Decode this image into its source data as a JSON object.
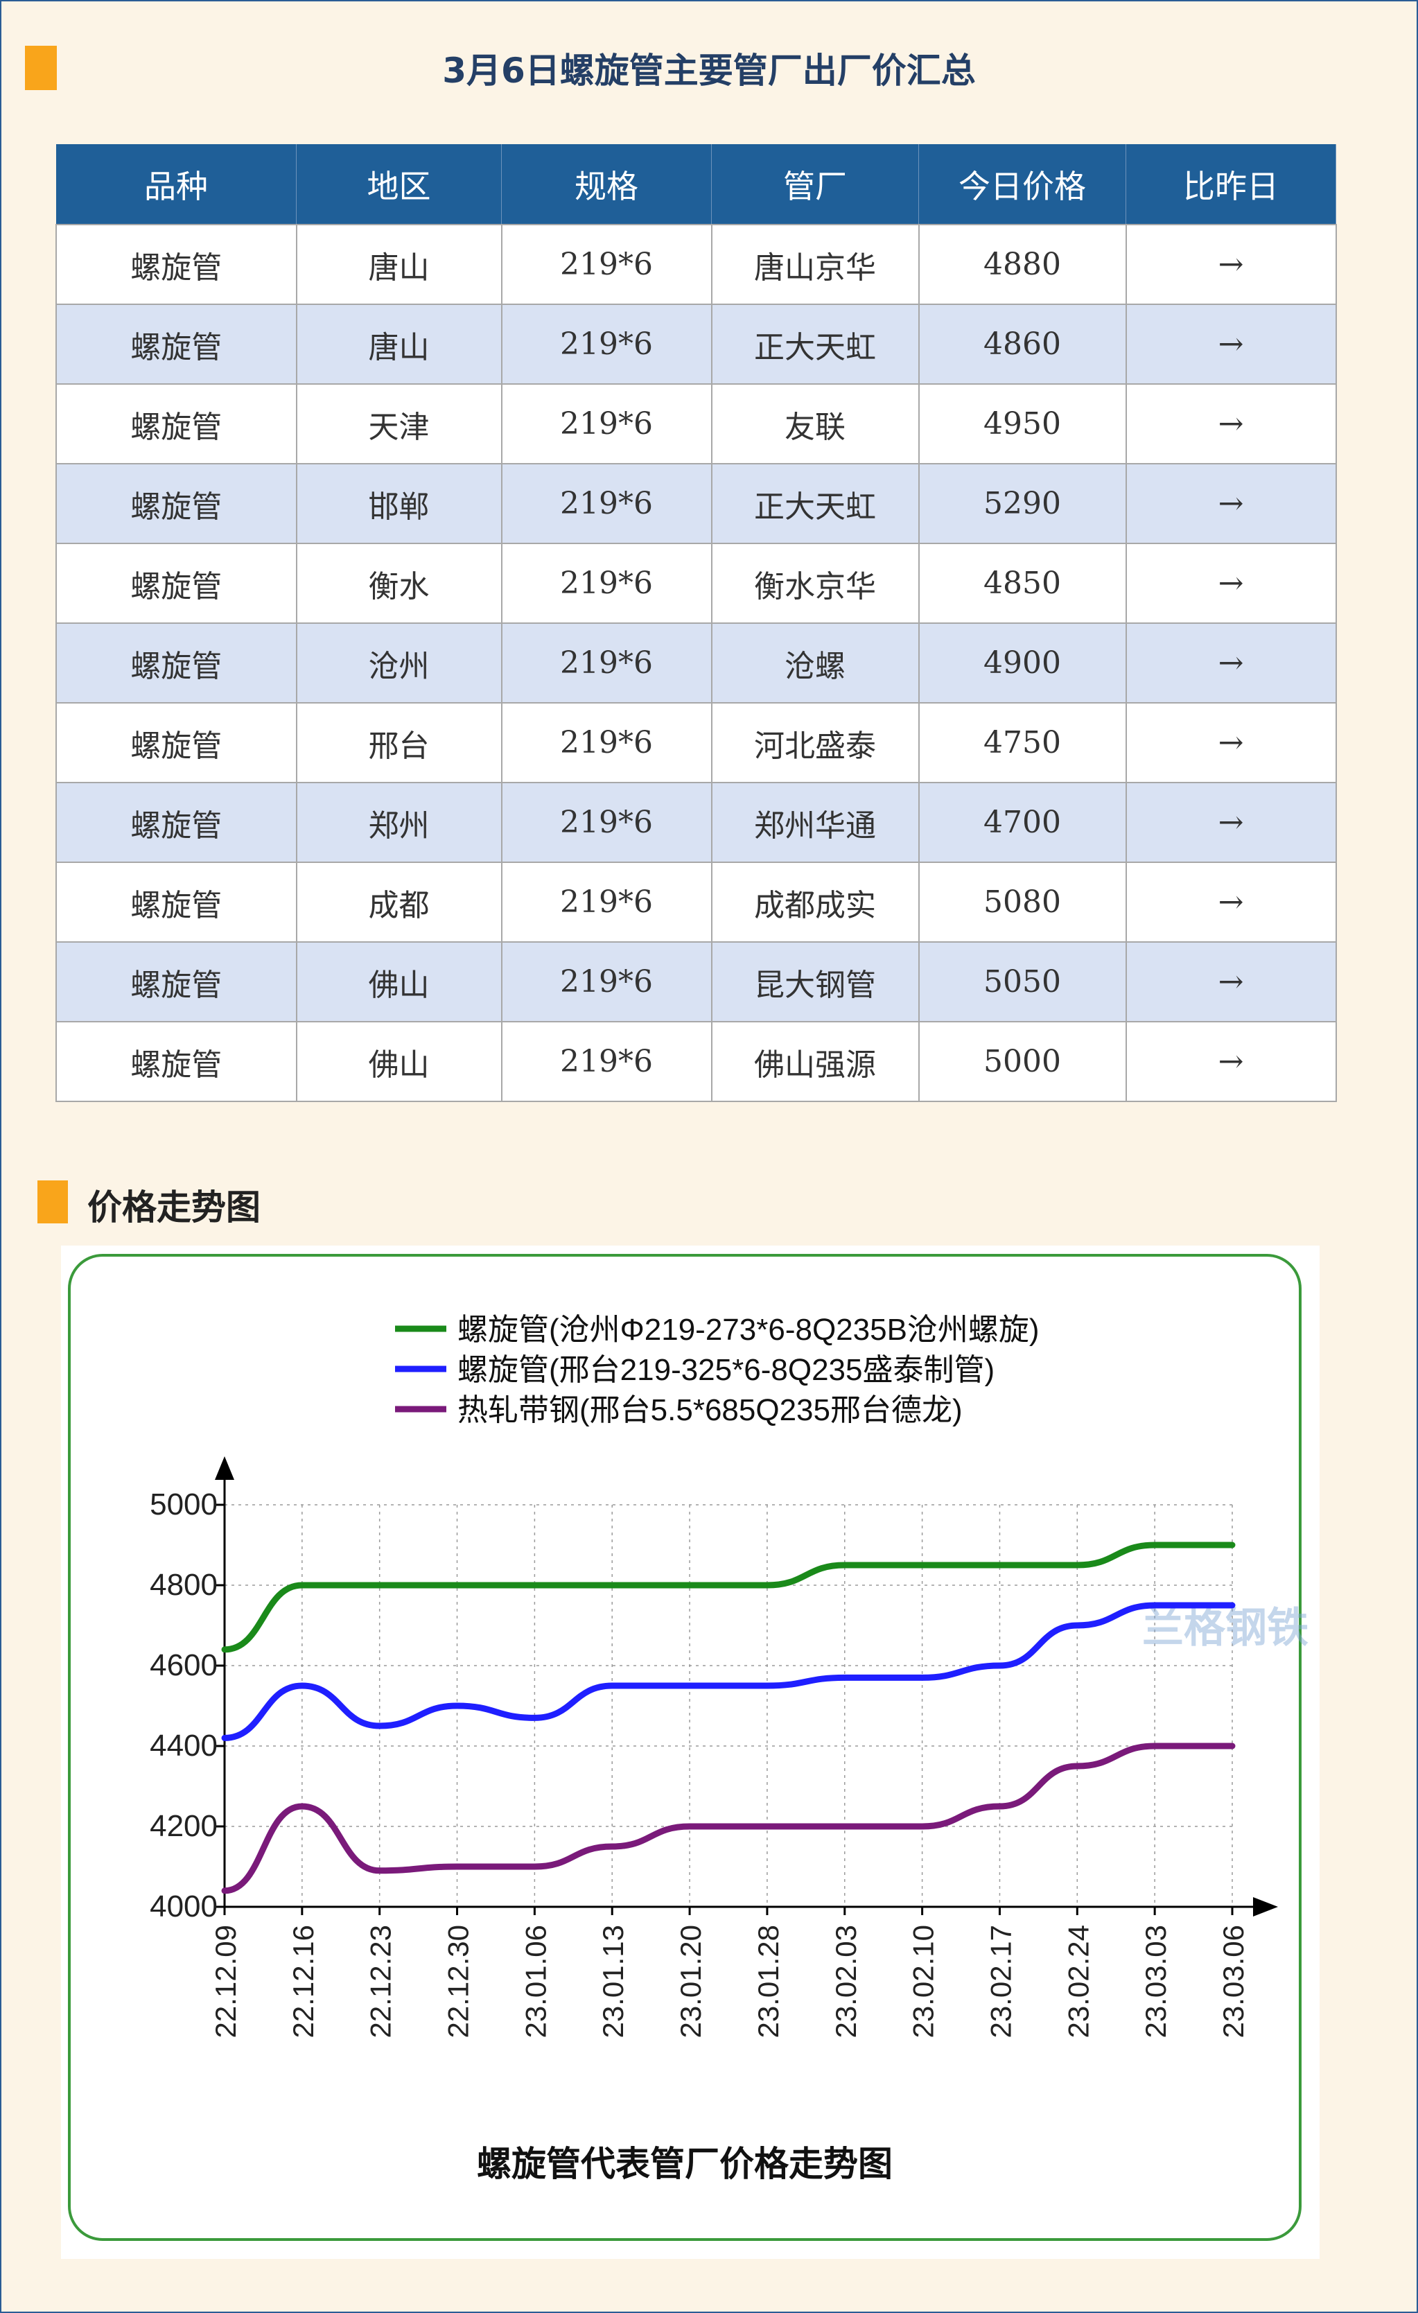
{
  "title": "3月6日螺旋管主要管厂出厂价汇总",
  "section2_title": "价格走势图",
  "colors": {
    "header_bg": "#1f5f98",
    "accent": "#f9a51b",
    "row_alt": "#d9e2f3"
  },
  "table": {
    "headers": [
      "品种",
      "地区",
      "规格",
      "管厂",
      "今日价格",
      "比昨日"
    ],
    "rows": [
      [
        "螺旋管",
        "唐山",
        "219*6",
        "唐山京华",
        "4880",
        "→"
      ],
      [
        "螺旋管",
        "唐山",
        "219*6",
        "正大天虹",
        "4860",
        "→"
      ],
      [
        "螺旋管",
        "天津",
        "219*6",
        "友联",
        "4950",
        "→"
      ],
      [
        "螺旋管",
        "邯郸",
        "219*6",
        "正大天虹",
        "5290",
        "→"
      ],
      [
        "螺旋管",
        "衡水",
        "219*6",
        "衡水京华",
        "4850",
        "→"
      ],
      [
        "螺旋管",
        "沧州",
        "219*6",
        "沧螺",
        "4900",
        "→"
      ],
      [
        "螺旋管",
        "邢台",
        "219*6",
        "河北盛泰",
        "4750",
        "→"
      ],
      [
        "螺旋管",
        "郑州",
        "219*6",
        "郑州华通",
        "4700",
        "→"
      ],
      [
        "螺旋管",
        "成都",
        "219*6",
        "成都成实",
        "5080",
        "→"
      ],
      [
        "螺旋管",
        "佛山",
        "219*6",
        "昆大钢管",
        "5050",
        "→"
      ],
      [
        "螺旋管",
        "佛山",
        "219*6",
        "佛山强源",
        "5000",
        "→"
      ]
    ]
  },
  "chart_data": {
    "type": "line",
    "title": "螺旋管代表管厂价格走势图",
    "watermark": "兰格钢铁",
    "x": [
      "22.12.09",
      "22.12.16",
      "22.12.23",
      "22.12.30",
      "23.01.06",
      "23.01.13",
      "23.01.20",
      "23.01.28",
      "23.02.03",
      "23.02.10",
      "23.02.17",
      "23.02.24",
      "23.03.03",
      "23.03.06"
    ],
    "ylim": [
      4000,
      5000
    ],
    "yticks": [
      "5000",
      "4800",
      "4600",
      "4400",
      "4200",
      "4000"
    ],
    "grid": true,
    "legend_position": "top",
    "series": [
      {
        "name": "螺旋管(沧州Φ219-273*6-8Q235B沧州螺旋)",
        "color": "#1a8a1a",
        "values": [
          4640,
          4800,
          4800,
          4800,
          4800,
          4800,
          4800,
          4800,
          4850,
          4850,
          4850,
          4850,
          4900,
          4900
        ]
      },
      {
        "name": "螺旋管(邢台219-325*6-8Q235盛泰制管)",
        "color": "#1f1fff",
        "values": [
          4420,
          4550,
          4450,
          4500,
          4470,
          4550,
          4550,
          4550,
          4570,
          4570,
          4600,
          4700,
          4750,
          4750
        ]
      },
      {
        "name": "热轧带钢(邢台5.5*685Q235邢台德龙)",
        "color": "#7a1a7a",
        "values": [
          4040,
          4250,
          4090,
          4100,
          4100,
          4150,
          4200,
          4200,
          4200,
          4200,
          4250,
          4350,
          4400,
          4400
        ]
      }
    ]
  }
}
